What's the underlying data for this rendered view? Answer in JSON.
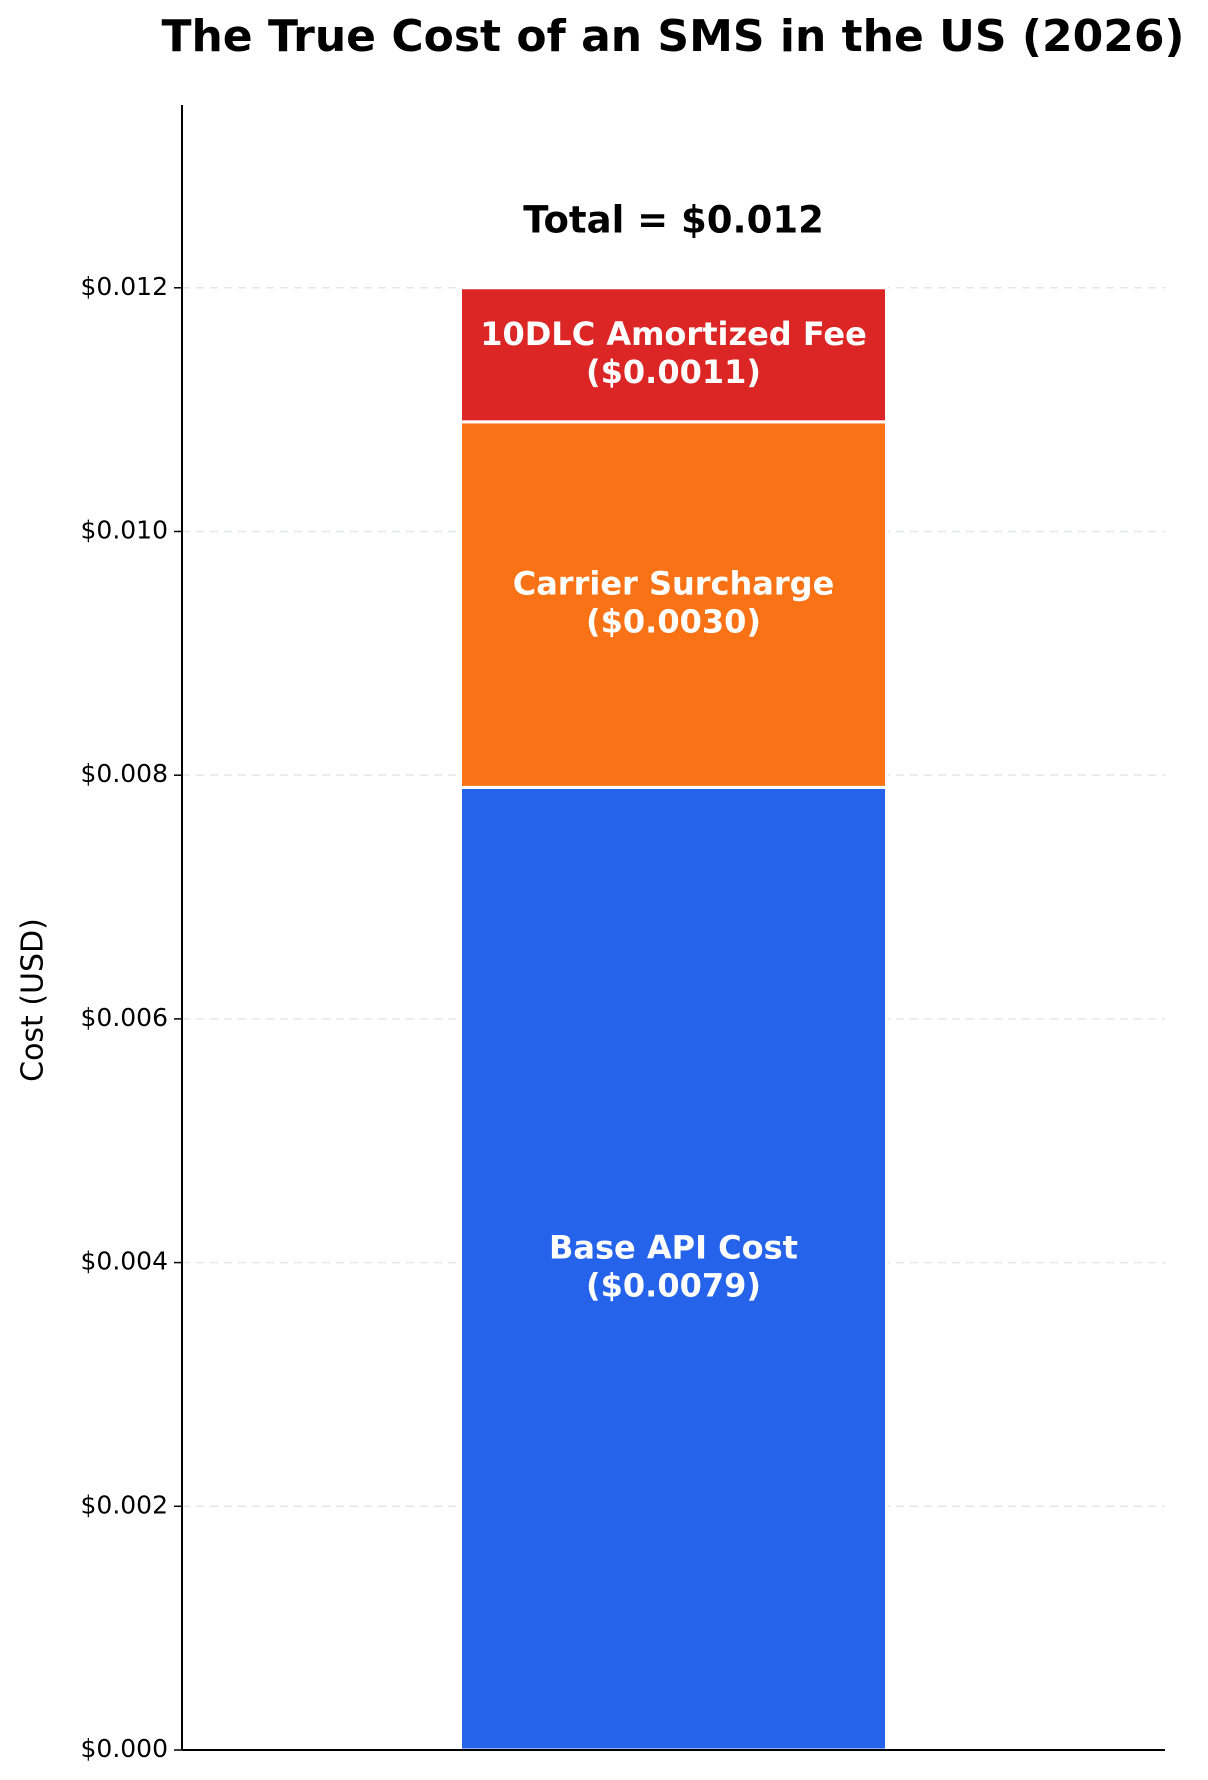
{
  "chart_data": {
    "type": "stacked_bar",
    "title": "The True Cost of an SMS in the US (2026)",
    "y_label": "Cost (USD)",
    "annotation": "Total = $0.012",
    "categories": [
      null
    ],
    "series": [
      {
        "name": "Base API Cost",
        "color": "#2563eb",
        "values": [
          0.0079
        ],
        "value_labels": [
          "($0.0079)"
        ]
      },
      {
        "name": "Carrier Surcharge",
        "color": "#f97316",
        "values": [
          0.003
        ],
        "value_labels": [
          "($0.0030)"
        ]
      },
      {
        "name": "10DLC Amortized Fee",
        "color": "#dc2626",
        "values": [
          0.0011
        ],
        "value_labels": [
          "($0.0011)"
        ]
      }
    ],
    "ylim": [
      0,
      0.0135
    ],
    "yticks": [
      {
        "value": 0,
        "label": "$0.000"
      },
      {
        "value": 0.002,
        "label": "$0.002"
      },
      {
        "value": 0.004,
        "label": "$0.004"
      },
      {
        "value": 0.006,
        "label": "$0.006"
      },
      {
        "value": 0.008,
        "label": "$0.008"
      },
      {
        "value": 0.01,
        "label": "$0.010"
      },
      {
        "value": 0.012,
        "label": "$0.012"
      }
    ],
    "grid": true
  }
}
